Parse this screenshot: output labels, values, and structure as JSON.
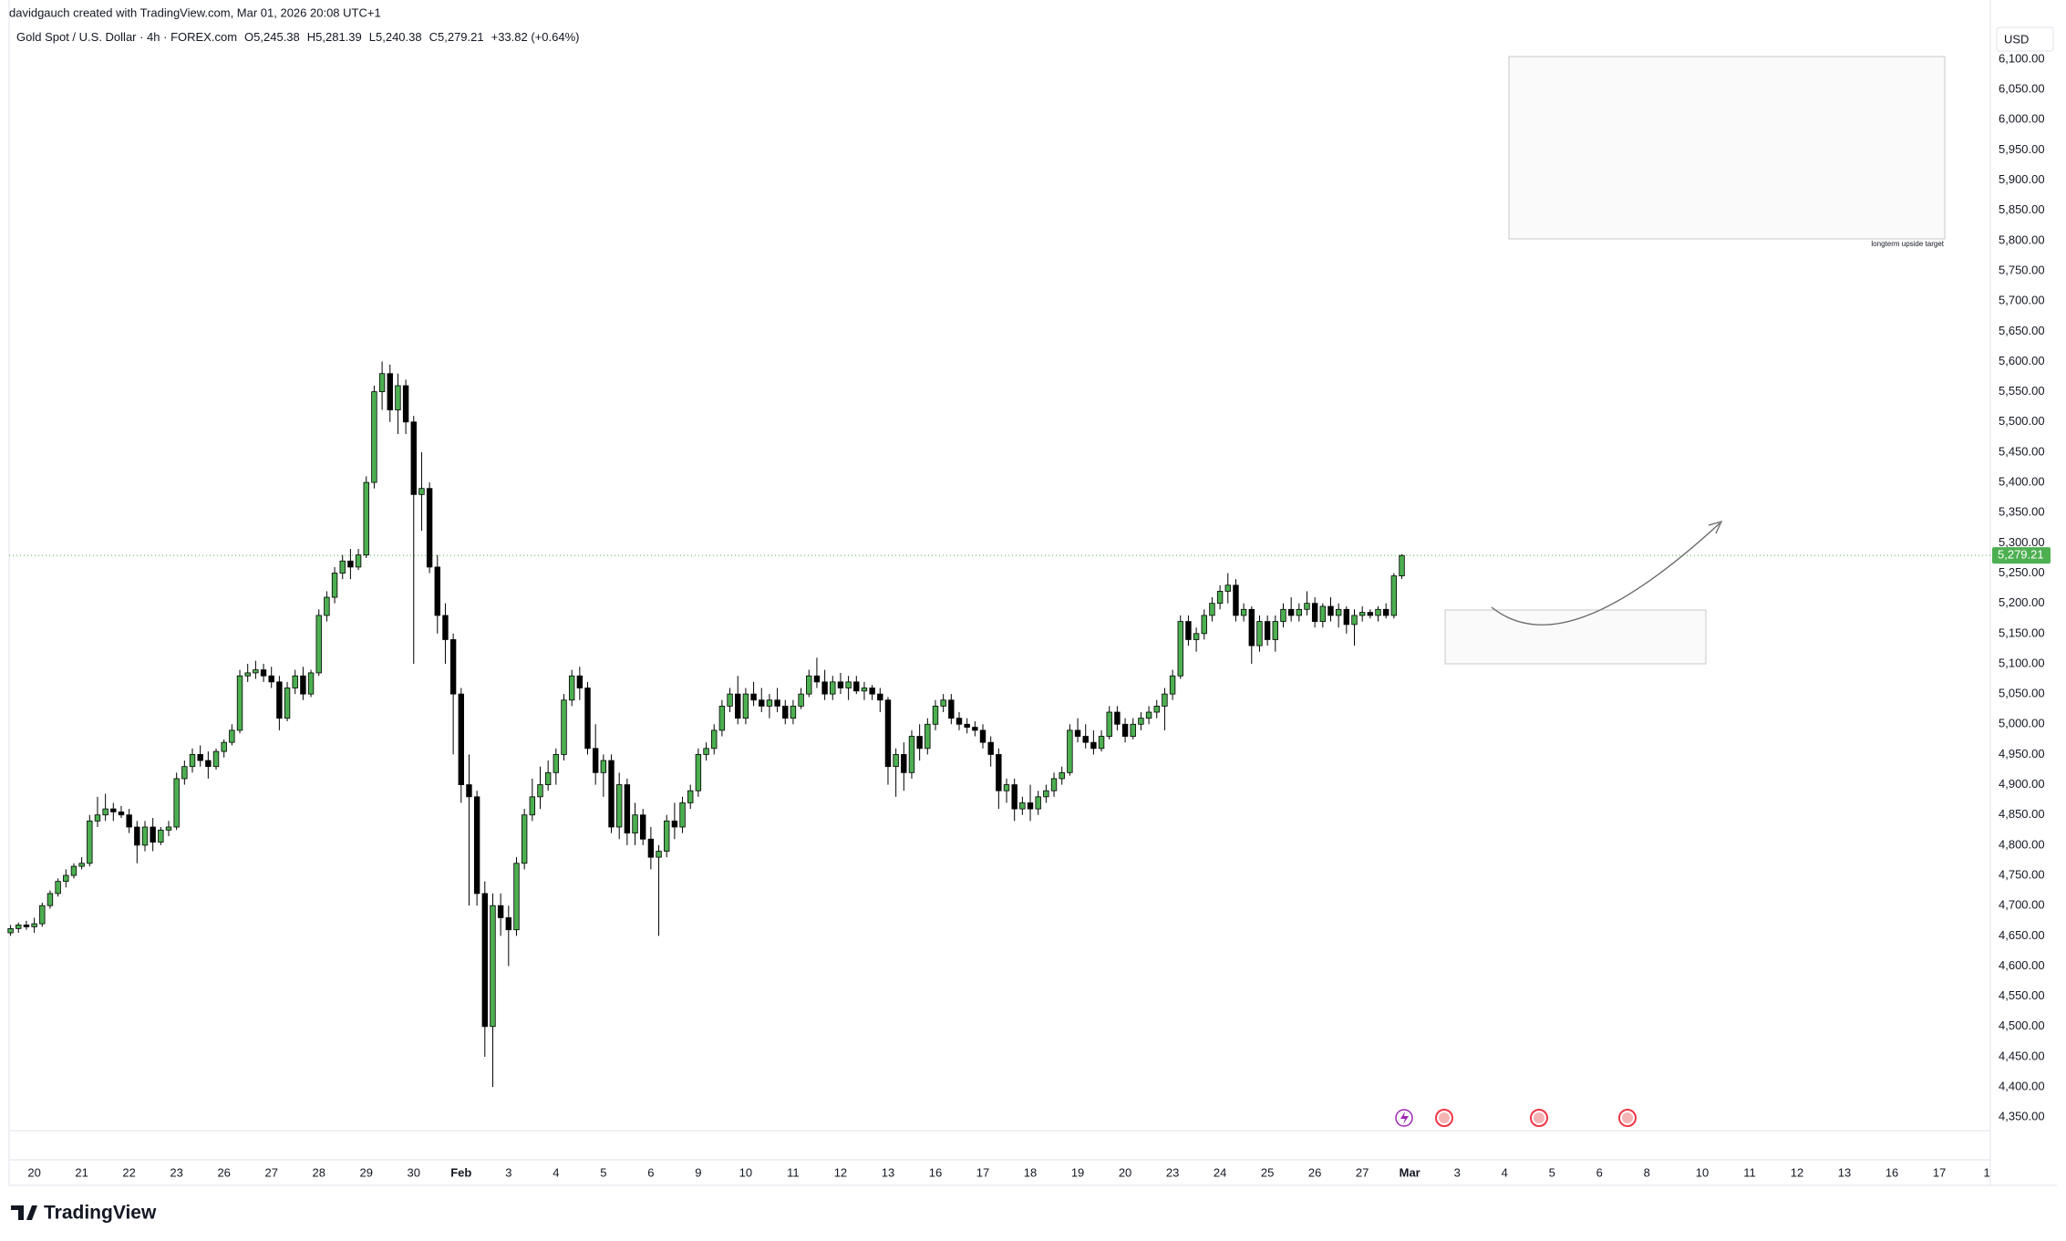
{
  "header": {
    "credit": "davidgauch created with TradingView.com, Mar 01, 2026 20:08 UTC+1",
    "symbol": "Gold Spot / U.S. Dollar · 4h · FOREX.com",
    "ohlc_legend": [
      {
        "label": "O",
        "value": "5,245.38"
      },
      {
        "label": "H",
        "value": "5,281.39"
      },
      {
        "label": "L",
        "value": "5,240.38"
      },
      {
        "label": "C",
        "value": "5,279.21"
      }
    ],
    "change": "+33.82 (+0.64%)"
  },
  "currency": "USD",
  "logo": "TradingView",
  "chart_data": {
    "type": "candlestick",
    "up_color": "#4caf50",
    "down_color": "#000000",
    "annotations": [
      "longterm upside target"
    ],
    "last_price": {
      "value": 5279.21,
      "label": "5,279.21"
    },
    "ylim": [
      4330,
      6155
    ],
    "yticks": [
      {
        "value": 4350,
        "label": "4,350.00"
      },
      {
        "value": 4400,
        "label": "4,400.00"
      },
      {
        "value": 4450,
        "label": "4,450.00"
      },
      {
        "value": 4500,
        "label": "4,500.00"
      },
      {
        "value": 4550,
        "label": "4,550.00"
      },
      {
        "value": 4600,
        "label": "4,600.00"
      },
      {
        "value": 4650,
        "label": "4,650.00"
      },
      {
        "value": 4700,
        "label": "4,700.00"
      },
      {
        "value": 4750,
        "label": "4,750.00"
      },
      {
        "value": 4800,
        "label": "4,800.00"
      },
      {
        "value": 4850,
        "label": "4,850.00"
      },
      {
        "value": 4900,
        "label": "4,900.00"
      },
      {
        "value": 4950,
        "label": "4,950.00"
      },
      {
        "value": 5000,
        "label": "5,000.00"
      },
      {
        "value": 5050,
        "label": "5,050.00"
      },
      {
        "value": 5100,
        "label": "5,100.00"
      },
      {
        "value": 5150,
        "label": "5,150.00"
      },
      {
        "value": 5200,
        "label": "5,200.00"
      },
      {
        "value": 5250,
        "label": "5,250.00"
      },
      {
        "value": 5300,
        "label": "5,300.00"
      },
      {
        "value": 5350,
        "label": "5,350.00"
      },
      {
        "value": 5400,
        "label": "5,400.00"
      },
      {
        "value": 5450,
        "label": "5,450.00"
      },
      {
        "value": 5500,
        "label": "5,500.00"
      },
      {
        "value": 5550,
        "label": "5,550.00"
      },
      {
        "value": 5600,
        "label": "5,600.00"
      },
      {
        "value": 5650,
        "label": "5,650.00"
      },
      {
        "value": 5700,
        "label": "5,700.00"
      },
      {
        "value": 5750,
        "label": "5,750.00"
      },
      {
        "value": 5800,
        "label": "5,800.00"
      },
      {
        "value": 5850,
        "label": "5,850.00"
      },
      {
        "value": 5900,
        "label": "5,900.00"
      },
      {
        "value": 5950,
        "label": "5,950.00"
      },
      {
        "value": 6000,
        "label": "6,000.00"
      },
      {
        "value": 6050,
        "label": "6,050.00"
      },
      {
        "value": 6100,
        "label": "6,100.00"
      }
    ],
    "xticks": [
      {
        "value": 3,
        "label": "20"
      },
      {
        "value": 9,
        "label": "21"
      },
      {
        "value": 15,
        "label": "22"
      },
      {
        "value": 21,
        "label": "23"
      },
      {
        "value": 27,
        "label": "26"
      },
      {
        "value": 33,
        "label": "27"
      },
      {
        "value": 39,
        "label": "28"
      },
      {
        "value": 45,
        "label": "29"
      },
      {
        "value": 51,
        "label": "30"
      },
      {
        "value": 57,
        "label": "Feb"
      },
      {
        "value": 63,
        "label": "3"
      },
      {
        "value": 69,
        "label": "4"
      },
      {
        "value": 75,
        "label": "5"
      },
      {
        "value": 81,
        "label": "6"
      },
      {
        "value": 87,
        "label": "9"
      },
      {
        "value": 93,
        "label": "10"
      },
      {
        "value": 99,
        "label": "11"
      },
      {
        "value": 105,
        "label": "12"
      },
      {
        "value": 111,
        "label": "13"
      },
      {
        "value": 117,
        "label": "16"
      },
      {
        "value": 123,
        "label": "17"
      },
      {
        "value": 129,
        "label": "18"
      },
      {
        "value": 135,
        "label": "19"
      },
      {
        "value": 141,
        "label": "20"
      },
      {
        "value": 147,
        "label": "23"
      },
      {
        "value": 153,
        "label": "24"
      },
      {
        "value": 159,
        "label": "25"
      },
      {
        "value": 165,
        "label": "26"
      },
      {
        "value": 171,
        "label": "27"
      },
      {
        "value": 177,
        "label": "Mar"
      },
      {
        "value": 183,
        "label": "3"
      },
      {
        "value": 189,
        "label": "4"
      },
      {
        "value": 195,
        "label": "5"
      },
      {
        "value": 201,
        "label": "6"
      },
      {
        "value": 207,
        "label": "8"
      },
      {
        "value": 214,
        "label": "10"
      },
      {
        "value": 220,
        "label": "11"
      },
      {
        "value": 226,
        "label": "12"
      },
      {
        "value": 232,
        "label": "13"
      },
      {
        "value": 238,
        "label": "16"
      },
      {
        "value": 244,
        "label": "17"
      },
      {
        "value": 250,
        "label": "1"
      }
    ],
    "ohlc": [
      [
        4655,
        4668,
        4650,
        4662
      ],
      [
        4662,
        4672,
        4655,
        4668
      ],
      [
        4668,
        4675,
        4660,
        4665
      ],
      [
        4665,
        4680,
        4655,
        4670
      ],
      [
        4670,
        4705,
        4665,
        4700
      ],
      [
        4700,
        4725,
        4695,
        4720
      ],
      [
        4720,
        4745,
        4715,
        4740
      ],
      [
        4740,
        4760,
        4730,
        4750
      ],
      [
        4750,
        4770,
        4745,
        4765
      ],
      [
        4765,
        4780,
        4760,
        4770
      ],
      [
        4770,
        4850,
        4765,
        4840
      ],
      [
        4840,
        4880,
        4830,
        4850
      ],
      [
        4850,
        4885,
        4840,
        4860
      ],
      [
        4860,
        4870,
        4840,
        4855
      ],
      [
        4855,
        4865,
        4845,
        4850
      ],
      [
        4850,
        4860,
        4820,
        4830
      ],
      [
        4830,
        4840,
        4770,
        4800
      ],
      [
        4800,
        4840,
        4790,
        4830
      ],
      [
        4830,
        4845,
        4790,
        4805
      ],
      [
        4805,
        4830,
        4800,
        4825
      ],
      [
        4825,
        4840,
        4815,
        4830
      ],
      [
        4830,
        4920,
        4825,
        4910
      ],
      [
        4910,
        4940,
        4900,
        4930
      ],
      [
        4930,
        4960,
        4920,
        4950
      ],
      [
        4950,
        4965,
        4930,
        4940
      ],
      [
        4940,
        4955,
        4910,
        4930
      ],
      [
        4930,
        4960,
        4925,
        4955
      ],
      [
        4955,
        4975,
        4945,
        4970
      ],
      [
        4970,
        5000,
        4965,
        4990
      ],
      [
        4990,
        5090,
        4985,
        5080
      ],
      [
        5080,
        5100,
        5070,
        5085
      ],
      [
        5085,
        5105,
        5075,
        5090
      ],
      [
        5090,
        5100,
        5070,
        5080
      ],
      [
        5080,
        5095,
        5060,
        5070
      ],
      [
        5070,
        5080,
        4990,
        5010
      ],
      [
        5010,
        5070,
        5005,
        5060
      ],
      [
        5060,
        5090,
        5050,
        5080
      ],
      [
        5080,
        5095,
        5040,
        5050
      ],
      [
        5050,
        5090,
        5045,
        5085
      ],
      [
        5085,
        5190,
        5080,
        5180
      ],
      [
        5180,
        5220,
        5170,
        5210
      ],
      [
        5210,
        5260,
        5200,
        5250
      ],
      [
        5250,
        5280,
        5240,
        5270
      ],
      [
        5270,
        5290,
        5240,
        5260
      ],
      [
        5260,
        5290,
        5255,
        5280
      ],
      [
        5280,
        5410,
        5275,
        5400
      ],
      [
        5400,
        5560,
        5390,
        5550
      ],
      [
        5550,
        5600,
        5520,
        5580
      ],
      [
        5580,
        5595,
        5500,
        5520
      ],
      [
        5520,
        5580,
        5480,
        5560
      ],
      [
        5560,
        5570,
        5480,
        5500
      ],
      [
        5500,
        5510,
        5100,
        5380
      ],
      [
        5380,
        5450,
        5320,
        5390
      ],
      [
        5390,
        5400,
        5250,
        5260
      ],
      [
        5260,
        5280,
        5150,
        5180
      ],
      [
        5180,
        5200,
        5100,
        5140
      ],
      [
        5140,
        5150,
        4950,
        5050
      ],
      [
        5050,
        5060,
        4870,
        4900
      ],
      [
        4900,
        4950,
        4700,
        4880
      ],
      [
        4880,
        4890,
        4700,
        4720
      ],
      [
        4720,
        4740,
        4450,
        4500
      ],
      [
        4500,
        4720,
        4400,
        4700
      ],
      [
        4700,
        4720,
        4650,
        4680
      ],
      [
        4680,
        4700,
        4600,
        4660
      ],
      [
        4660,
        4780,
        4650,
        4770
      ],
      [
        4770,
        4860,
        4760,
        4850
      ],
      [
        4850,
        4910,
        4840,
        4880
      ],
      [
        4880,
        4930,
        4860,
        4900
      ],
      [
        4900,
        4940,
        4890,
        4920
      ],
      [
        4920,
        4960,
        4900,
        4950
      ],
      [
        4950,
        5050,
        4940,
        5040
      ],
      [
        5040,
        5090,
        5030,
        5080
      ],
      [
        5080,
        5095,
        5040,
        5060
      ],
      [
        5060,
        5070,
        4950,
        4960
      ],
      [
        4960,
        5000,
        4900,
        4920
      ],
      [
        4920,
        4950,
        4880,
        4940
      ],
      [
        4940,
        4950,
        4820,
        4830
      ],
      [
        4830,
        4920,
        4810,
        4900
      ],
      [
        4900,
        4910,
        4800,
        4820
      ],
      [
        4820,
        4870,
        4800,
        4850
      ],
      [
        4850,
        4860,
        4800,
        4810
      ],
      [
        4810,
        4830,
        4760,
        4780
      ],
      [
        4780,
        4800,
        4650,
        4790
      ],
      [
        4790,
        4850,
        4780,
        4840
      ],
      [
        4840,
        4870,
        4810,
        4830
      ],
      [
        4830,
        4880,
        4820,
        4870
      ],
      [
        4870,
        4900,
        4860,
        4890
      ],
      [
        4890,
        4960,
        4880,
        4950
      ],
      [
        4950,
        4970,
        4940,
        4960
      ],
      [
        4960,
        5000,
        4950,
        4990
      ],
      [
        4990,
        5040,
        4980,
        5030
      ],
      [
        5030,
        5060,
        5020,
        5050
      ],
      [
        5050,
        5080,
        5000,
        5010
      ],
      [
        5010,
        5060,
        5000,
        5050
      ],
      [
        5050,
        5070,
        5030,
        5040
      ],
      [
        5040,
        5060,
        5020,
        5030
      ],
      [
        5030,
        5050,
        5010,
        5040
      ],
      [
        5040,
        5060,
        5020,
        5030
      ],
      [
        5030,
        5040,
        5000,
        5010
      ],
      [
        5010,
        5040,
        5000,
        5030
      ],
      [
        5030,
        5060,
        5025,
        5050
      ],
      [
        5050,
        5090,
        5045,
        5080
      ],
      [
        5080,
        5110,
        5060,
        5070
      ],
      [
        5070,
        5090,
        5040,
        5050
      ],
      [
        5050,
        5080,
        5040,
        5070
      ],
      [
        5070,
        5085,
        5050,
        5060
      ],
      [
        5060,
        5080,
        5040,
        5070
      ],
      [
        5070,
        5080,
        5050,
        5055
      ],
      [
        5055,
        5070,
        5040,
        5060
      ],
      [
        5060,
        5065,
        5040,
        5050
      ],
      [
        5050,
        5060,
        5020,
        5040
      ],
      [
        5040,
        5045,
        4900,
        4930
      ],
      [
        4930,
        4960,
        4880,
        4950
      ],
      [
        4950,
        4970,
        4890,
        4920
      ],
      [
        4920,
        4990,
        4910,
        4980
      ],
      [
        4980,
        5000,
        4940,
        4960
      ],
      [
        4960,
        5010,
        4950,
        5000
      ],
      [
        5000,
        5040,
        4990,
        5030
      ],
      [
        5030,
        5050,
        5020,
        5040
      ],
      [
        5040,
        5050,
        5000,
        5010
      ],
      [
        5010,
        5020,
        4990,
        5000
      ],
      [
        5000,
        5010,
        4985,
        4995
      ],
      [
        4995,
        5005,
        4980,
        4990
      ],
      [
        4990,
        5000,
        4960,
        4970
      ],
      [
        4970,
        4980,
        4930,
        4950
      ],
      [
        4950,
        4960,
        4860,
        4890
      ],
      [
        4890,
        4910,
        4870,
        4900
      ],
      [
        4900,
        4910,
        4840,
        4860
      ],
      [
        4860,
        4880,
        4850,
        4870
      ],
      [
        4870,
        4900,
        4840,
        4860
      ],
      [
        4860,
        4890,
        4850,
        4880
      ],
      [
        4880,
        4900,
        4870,
        4890
      ],
      [
        4890,
        4920,
        4880,
        4910
      ],
      [
        4910,
        4930,
        4900,
        4920
      ],
      [
        4920,
        5000,
        4915,
        4990
      ],
      [
        4990,
        5010,
        4970,
        4980
      ],
      [
        4980,
        5000,
        4960,
        4970
      ],
      [
        4970,
        4990,
        4950,
        4960
      ],
      [
        4960,
        4990,
        4955,
        4980
      ],
      [
        4980,
        5030,
        4975,
        5020
      ],
      [
        5020,
        5030,
        4990,
        5000
      ],
      [
        5000,
        5010,
        4970,
        4980
      ],
      [
        4980,
        5010,
        4975,
        5000
      ],
      [
        5000,
        5020,
        4990,
        5010
      ],
      [
        5010,
        5030,
        5000,
        5020
      ],
      [
        5020,
        5040,
        5010,
        5030
      ],
      [
        5030,
        5060,
        4990,
        5050
      ],
      [
        5050,
        5090,
        5040,
        5080
      ],
      [
        5080,
        5180,
        5075,
        5170
      ],
      [
        5170,
        5180,
        5130,
        5140
      ],
      [
        5140,
        5160,
        5120,
        5150
      ],
      [
        5150,
        5190,
        5140,
        5180
      ],
      [
        5180,
        5210,
        5170,
        5200
      ],
      [
        5200,
        5230,
        5190,
        5220
      ],
      [
        5220,
        5250,
        5200,
        5230
      ],
      [
        5230,
        5240,
        5170,
        5180
      ],
      [
        5180,
        5200,
        5170,
        5190
      ],
      [
        5190,
        5195,
        5100,
        5130
      ],
      [
        5130,
        5180,
        5120,
        5170
      ],
      [
        5170,
        5180,
        5130,
        5140
      ],
      [
        5140,
        5180,
        5120,
        5170
      ],
      [
        5170,
        5200,
        5160,
        5190
      ],
      [
        5190,
        5210,
        5170,
        5180
      ],
      [
        5180,
        5200,
        5170,
        5190
      ],
      [
        5190,
        5220,
        5180,
        5200
      ],
      [
        5200,
        5210,
        5160,
        5170
      ],
      [
        5170,
        5200,
        5160,
        5195
      ],
      [
        5195,
        5210,
        5170,
        5180
      ],
      [
        5180,
        5200,
        5160,
        5190
      ],
      [
        5190,
        5195,
        5150,
        5165
      ],
      [
        5165,
        5190,
        5130,
        5180
      ],
      [
        5180,
        5195,
        5170,
        5185
      ],
      [
        5185,
        5190,
        5175,
        5180
      ],
      [
        5180,
        5195,
        5170,
        5190
      ],
      [
        5190,
        5200,
        5175,
        5180
      ],
      [
        5180,
        5250,
        5175,
        5245.38
      ],
      [
        5245.38,
        5281.39,
        5240.38,
        5279.21
      ]
    ]
  }
}
